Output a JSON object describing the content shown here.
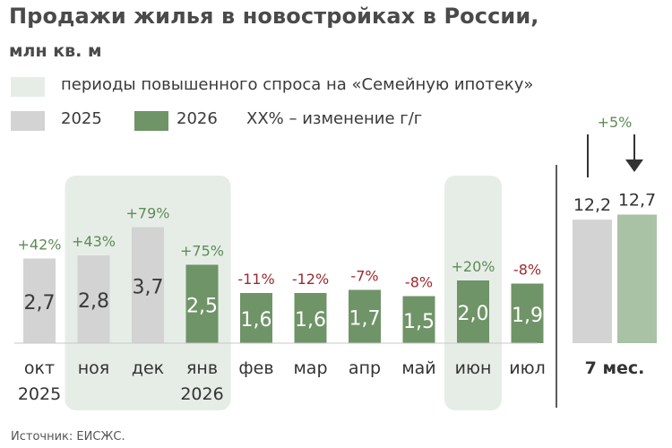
{
  "title": "Продажи жилья в новостройках в России,",
  "subtitle": "млн кв. м",
  "legend": {
    "highlight": {
      "label": "периоды повышенного спроса на «Семейную ипотеку»",
      "color": "#e6ede7"
    },
    "series_2025": {
      "label": "2025",
      "color": "#d3d3d3"
    },
    "series_2026": {
      "label": "2026",
      "color": "#6f9467"
    },
    "change_note": "XX% – изменение г/г"
  },
  "colors": {
    "positive": "#5e8c55",
    "negative": "#9b2a2e",
    "value_text_dark": "#3a3a3a",
    "value_text_light": "#ffffff",
    "axis": "#333333",
    "total_2026": "#a9c1a4"
  },
  "chart_data": {
    "type": "bar",
    "title": "Продажи жилья в новостройках в России, млн кв. м",
    "categories": [
      "окт",
      "ноя",
      "дек",
      "янв",
      "фев",
      "мар",
      "апр",
      "май",
      "июн",
      "июл"
    ],
    "year_labels": [
      "2025",
      "",
      "",
      "2026",
      "",
      "",
      "",
      "",
      "",
      ""
    ],
    "values": [
      2.7,
      2.8,
      3.7,
      2.5,
      1.6,
      1.6,
      1.7,
      1.5,
      2.0,
      1.9
    ],
    "value_labels": [
      "2,7",
      "2,8",
      "3,7",
      "2,5",
      "1,6",
      "1,6",
      "1,7",
      "1,5",
      "2,0",
      "1,9"
    ],
    "bar_series": [
      "2025",
      "2025",
      "2025",
      "2026",
      "2026",
      "2026",
      "2026",
      "2026",
      "2026",
      "2026"
    ],
    "yoy_change": [
      "+42%",
      "+43%",
      "+79%",
      "+75%",
      "-11%",
      "-12%",
      "-7%",
      "-8%",
      "+20%",
      "-8%"
    ],
    "highlight_periods": [
      [
        1,
        3
      ],
      [
        8,
        8
      ]
    ],
    "totals": {
      "label": "7 мес.",
      "values": [
        12.2,
        12.7
      ],
      "value_labels": [
        "12,2",
        "12,7"
      ],
      "change": "+5%"
    },
    "ylim": [
      0,
      4.2
    ]
  },
  "source": "Источник: ЕИСЖС."
}
